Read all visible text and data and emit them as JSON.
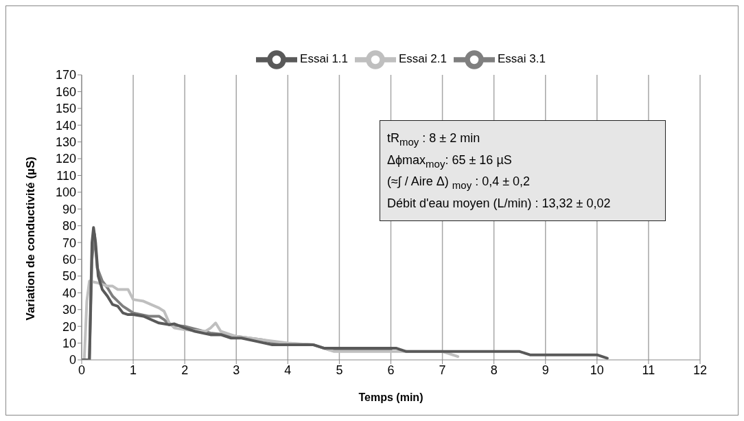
{
  "chart_data": {
    "type": "line",
    "xlabel": "Temps (min)",
    "ylabel": "Variation de conductivité  (µS)",
    "xlim": [
      0,
      12
    ],
    "xticks": [
      0,
      1,
      2,
      3,
      4,
      5,
      6,
      7,
      8,
      9,
      10,
      11,
      12
    ],
    "ylim": [
      0,
      170
    ],
    "yticks": [
      0,
      10,
      20,
      30,
      40,
      50,
      60,
      70,
      80,
      90,
      100,
      110,
      120,
      130,
      140,
      150,
      160,
      170
    ],
    "grid": "x",
    "legend": "top",
    "marker": "none",
    "line_style": "solid",
    "series": [
      {
        "name": "Essai 3.1",
        "color": "#7f7f7f",
        "x": [
          0,
          0.15,
          0.2,
          0.25,
          0.3,
          0.4,
          0.5,
          0.6,
          0.7,
          0.8,
          0.9,
          1.0,
          1.3,
          1.5,
          1.6,
          1.7,
          2.0,
          2.5,
          2.8,
          3.0,
          3.5,
          3.8,
          4.5,
          4.8,
          5.5,
          6.0
        ],
        "values": [
          0,
          0,
          60,
          75,
          55,
          47,
          43,
          38,
          35,
          32,
          30,
          28,
          26,
          26,
          24,
          21,
          20,
          16,
          15,
          14,
          12,
          10,
          9,
          6,
          6,
          6
        ]
      },
      {
        "name": "Essai 2.1",
        "color": "#bfbfbf",
        "x": [
          0,
          0.05,
          0.1,
          0.15,
          0.3,
          0.5,
          0.6,
          0.7,
          0.9,
          1.0,
          1.2,
          1.5,
          1.6,
          1.7,
          1.8,
          2.0,
          2.4,
          2.5,
          2.6,
          2.7,
          3.0,
          3.5,
          4.0,
          4.5,
          4.9,
          7.0,
          7.3
        ],
        "values": [
          0,
          0,
          35,
          47,
          46,
          44,
          44,
          42,
          42,
          36,
          35,
          31,
          29,
          22,
          19,
          18,
          17,
          19,
          22,
          17,
          14,
          12,
          10,
          9,
          5,
          5,
          2
        ]
      },
      {
        "name": "Essai 1.1",
        "color": "#595959",
        "x": [
          0,
          0.15,
          0.2,
          0.23,
          0.27,
          0.32,
          0.4,
          0.5,
          0.6,
          0.7,
          0.8,
          0.9,
          1.0,
          1.2,
          1.5,
          1.7,
          1.8,
          2.0,
          2.2,
          2.5,
          2.7,
          2.9,
          3.1,
          3.4,
          3.7,
          4.5,
          4.7,
          6.1,
          6.3,
          8.5,
          8.7,
          10.0,
          10.2
        ],
        "values": [
          0,
          0,
          70,
          79,
          70,
          50,
          42,
          38,
          33,
          32,
          28,
          27,
          27,
          26,
          22,
          21,
          21.5,
          19,
          17,
          15,
          15,
          13,
          13,
          11,
          9,
          9,
          7,
          7,
          5,
          5,
          3,
          3,
          1
        ]
      }
    ],
    "annotations": [
      "tR$_{moy}$ : 8 ± 2 min",
      "Δϕmax$_{moy}$: 65 ± 16 µS",
      "(≈∫ / Aire Δ) $_{moy}$ : 0,4 ± 0,2",
      "Débit d'eau moyen (L/min) : 13,32 ± 0,02"
    ]
  }
}
